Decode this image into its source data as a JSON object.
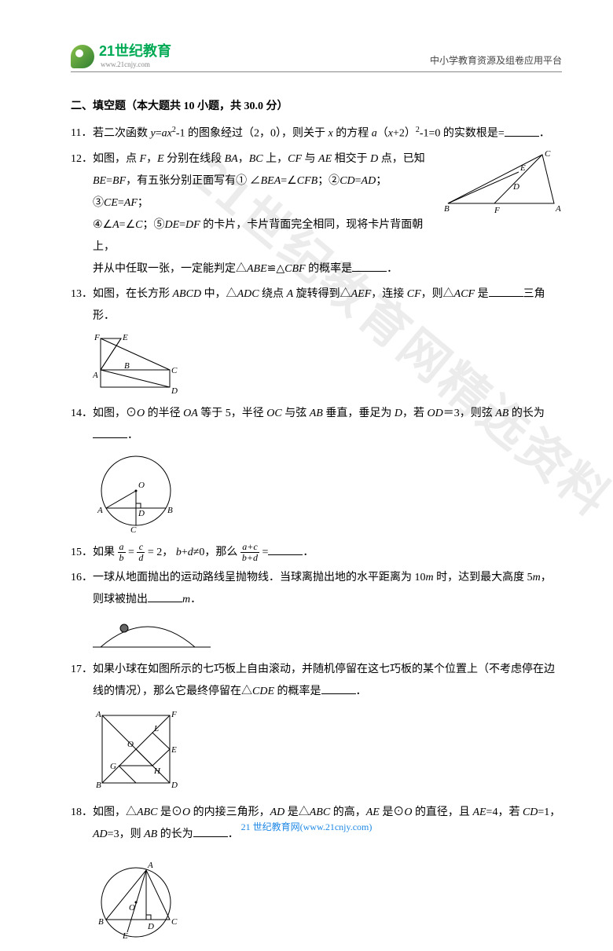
{
  "header": {
    "logo_main": "21世纪教育",
    "logo_sub": "www.21cnjy.com",
    "right": "中小学教育资源及组卷应用平台"
  },
  "watermark": "21世纪教育网精选资料",
  "section_title": "二、填空题（本大题共 10 小题，共 30.0 分）",
  "q11": {
    "line": "若二次函数 <span class='i'>y</span>=<span class='i'>ax</span><sup>2</sup>-1 的图象经过（2，0），则关于 <span class='i'>x</span> 的方程 <span class='i'>a</span>（<span class='i'>x</span>+2）<sup>2</sup>-1=0 的实数根是=<span class='blank'></span>．"
  },
  "q12": {
    "l1": "如图，点 <span class='i'>F</span>，<span class='i'>E</span> 分别在线段 <span class='i'>BA</span>，<span class='i'>BC</span> 上，<span class='i'>CF</span> 与 <span class='i'>AE</span> 相交于 <span class='i'>D</span> 点，已知",
    "l2": "<span class='i'>BE</span>=<span class='i'>BF</span>，有五张分别正面写有① ∠<span class='i'>BEA</span>=∠<span class='i'>CFB</span>；②<span class='i'>CD</span>=<span class='i'>AD</span>；③<span class='i'>CE</span>=<span class='i'>AF</span>；",
    "l3": "④∠<span class='i'>A</span>=∠<span class='i'>C</span>；⑤<span class='i'>DE</span>=<span class='i'>DF</span> 的卡片，卡片背面完全相同，现将卡片背面朝上，",
    "l4": "并从中任取一张，一定能判定△<span class='i'>ABE</span>≌△<span class='i'>CBF</span> 的概率是<span class='blank'></span>．",
    "fig": {
      "labels": {
        "B": "B",
        "C": "C",
        "A": "A",
        "E": "E",
        "D": "D",
        "F": "F"
      },
      "stroke": "#000"
    }
  },
  "q13": {
    "l1": "如图，在长方形 <span class='i'>ABCD</span> 中，△<span class='i'>ADC</span> 绕点 <span class='i'>A</span> 旋转得到△<span class='i'>AEF</span>，连接 <span class='i'>CF</span>，则△<span class='i'>ACF</span> 是<span class='blank'></span>三角形．",
    "fig": {
      "labels": {
        "F": "F",
        "E": "E",
        "A": "A",
        "B": "B",
        "C": "C",
        "D": "D"
      },
      "stroke": "#000"
    }
  },
  "q14": {
    "l1": "如图，⊙<span class='i'>O</span> 的半径 <span class='i'>OA</span> 等于 5，半径 <span class='i'>OC</span> 与弦 <span class='i'>AB</span> 垂直，垂足为 <span class='i'>D</span>，若 <span class='i'>OD</span>＝3，则弦 <span class='i'>AB</span> 的长为<span class='blank'></span>．",
    "fig": {
      "labels": {
        "O": "O",
        "A": "A",
        "B": "B",
        "C": "C",
        "D": "D"
      },
      "stroke": "#000"
    }
  },
  "q15": {
    "pre": "如果",
    "eq_mid": " = ",
    "eq_val": " = 2，",
    "cond": "<span class='i'>b</span>+<span class='i'>d</span>≠0，那么",
    "post": "=<span class='blank'></span>．",
    "frac1": {
      "n": "a",
      "d": "b"
    },
    "frac2": {
      "n": "c",
      "d": "d"
    },
    "frac3": {
      "n": "a+c",
      "d": "b+d"
    }
  },
  "q16": {
    "l1": "一球从地面抛出的运动路线呈抛物线．当球离抛出地的水平距离为 10<span class='i'>m</span> 时，达到最大高度 5<span class='i'>m</span>，",
    "l2": "则球被抛出<span class='blank'></span><span class='i'>m</span>．",
    "fig": {
      "stroke": "#000",
      "fill": "#666"
    }
  },
  "q17": {
    "l1": "如果小球在如图所示的七巧板上自由滚动，并随机停留在这七巧板的某个位置上（不考虑停在边",
    "l2": "线的情况），那么它最终停留在△<span class='i'>CDE</span> 的概率是<span class='blank'></span>．",
    "fig": {
      "labels": {
        "A": "A",
        "F": "F",
        "L": "L",
        "G": "G",
        "O": "O",
        "E": "E",
        "H": "H",
        "B": "B",
        "D": "D"
      },
      "stroke": "#000"
    }
  },
  "q18": {
    "l1": "如图，△<span class='i'>ABC</span> 是⊙<span class='i'>O</span> 的内接三角形，<span class='i'>AD</span> 是△<span class='i'>ABC</span> 的高，<span class='i'>AE</span> 是⊙<span class='i'>O</span> 的直径，且 <span class='i'>AE</span>=4，若 <span class='i'>CD</span>=1，",
    "l2": "<span class='i'>AD</span>=3，则 <span class='i'>AB</span> 的长为<span class='blank'></span>．",
    "fig": {
      "labels": {
        "A": "A",
        "B": "B",
        "O": "O",
        "E": "E",
        "D": "D",
        "C": "C"
      },
      "stroke": "#000"
    }
  },
  "footer": "21 世纪教育网(www.21cnjy.com)",
  "colors": {
    "text": "#000000",
    "watermark": "rgba(200,200,200,0.35)",
    "link": "#1e88e5",
    "logo_green": "#0a5",
    "border": "#888888"
  }
}
